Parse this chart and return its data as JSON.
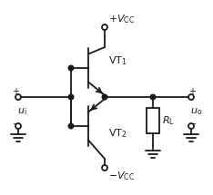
{
  "bg_color": "#ffffff",
  "line_color": "#1a1a1a",
  "vt1_label": "VT$_1$",
  "vt2_label": "VT$_2$",
  "vcc_pos_label": "$+V_{\\rm CC}$",
  "vcc_neg_label": "$-V_{\\rm CC}$",
  "rl_label": "$R_{\\rm L}$",
  "ui_label": "$u_{\\rm i}$",
  "uo_label": "$u_{\\rm o}$"
}
